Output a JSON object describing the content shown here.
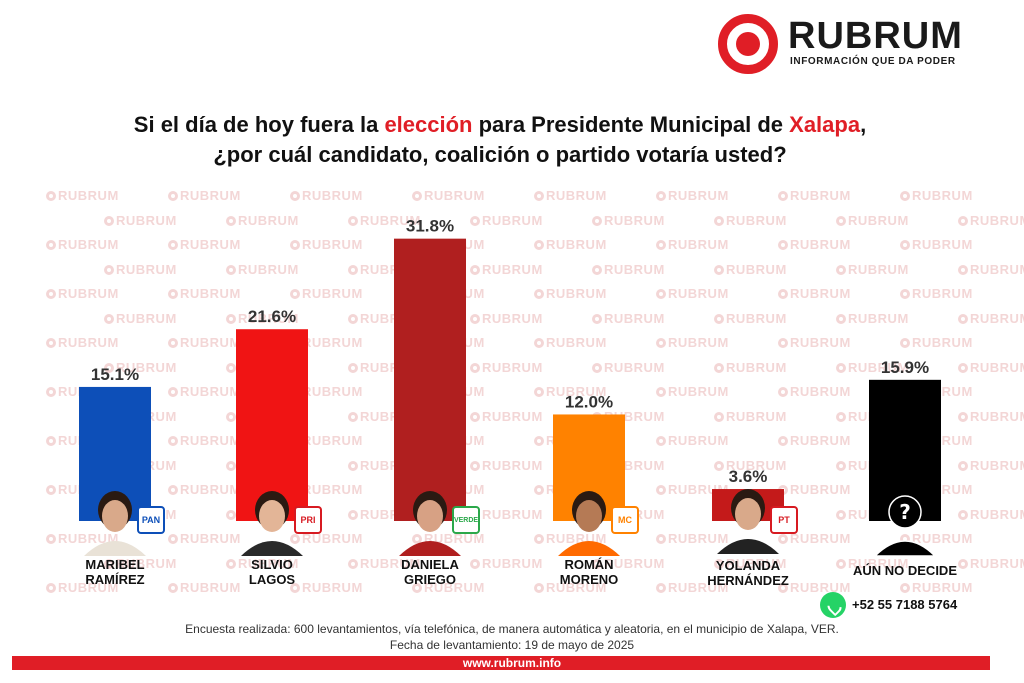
{
  "brand": {
    "name": "RUBRUM",
    "tagline": "INFORMACIÓN QUE DA PODER",
    "accent": "#e01e26",
    "watermark_text": "RUBRUM"
  },
  "question": {
    "part1": "Si el día de hoy fuera la ",
    "highlight1": "elección",
    "part2": " para Presidente Municipal de ",
    "highlight2": "Xalapa",
    "part3": ",",
    "line2": "¿por cuál candidato, coalición o partido votaría usted?"
  },
  "chart_data": {
    "type": "bar",
    "title": "Si el día de hoy fuera la elección para Presidente Municipal de Xalapa, ¿por cuál candidato, coalición o partido votaría usted?",
    "categories": [
      "MARIBEL RAMÍREZ",
      "SILVIO LAGOS",
      "DANIELA GRIEGO",
      "ROMÁN MORENO",
      "YOLANDA HERNÁNDEZ",
      "AÚN NO DECIDE"
    ],
    "values": [
      15.1,
      21.6,
      31.8,
      12.0,
      3.6,
      15.9
    ],
    "value_labels": [
      "15.1%",
      "21.6%",
      "31.8%",
      "12.0%",
      "3.6%",
      "15.9%"
    ],
    "colors": [
      "#0d4fb8",
      "#f01414",
      "#b01f1f",
      "#ff8200",
      "#c41a1a",
      "#000000"
    ],
    "party_badges": [
      "PAN",
      "PRI",
      "VERDE",
      "MC",
      "PT",
      ""
    ],
    "ylim": [
      0,
      33
    ],
    "grid": false,
    "legend": "none"
  },
  "candidates": [
    {
      "line1": "MARIBEL",
      "line2": "RAMÍREZ",
      "badge": "PAN",
      "badge_color": "#0d4fb8"
    },
    {
      "line1": "SILVIO",
      "line2": "LAGOS",
      "badge": "PRI",
      "badge_color": "#d71a21"
    },
    {
      "line1": "DANIELA",
      "line2": "GRIEGO",
      "badge": "VERDE",
      "badge_color": "#2ba84a"
    },
    {
      "line1": "ROMÁN",
      "line2": "MORENO",
      "badge": "MC",
      "badge_color": "#ff8200"
    },
    {
      "line1": "YOLANDA",
      "line2": "HERNÁNDEZ",
      "badge": "PT",
      "badge_color": "#d71a21"
    },
    {
      "line1": "AÚN NO DECIDE",
      "line2": "",
      "badge": "",
      "badge_color": ""
    }
  ],
  "contact": {
    "phone": "+52 55 7188 5764",
    "icon": "whatsapp-icon"
  },
  "footer": {
    "methodology": "Encuesta realizada: 600 levantamientos, vía telefónica, de manera automática y aleatoria, en el municipio de Xalapa, VER.",
    "date": "Fecha de levantamiento: 19 de mayo de 2025",
    "url": "www.rubrum.info"
  }
}
